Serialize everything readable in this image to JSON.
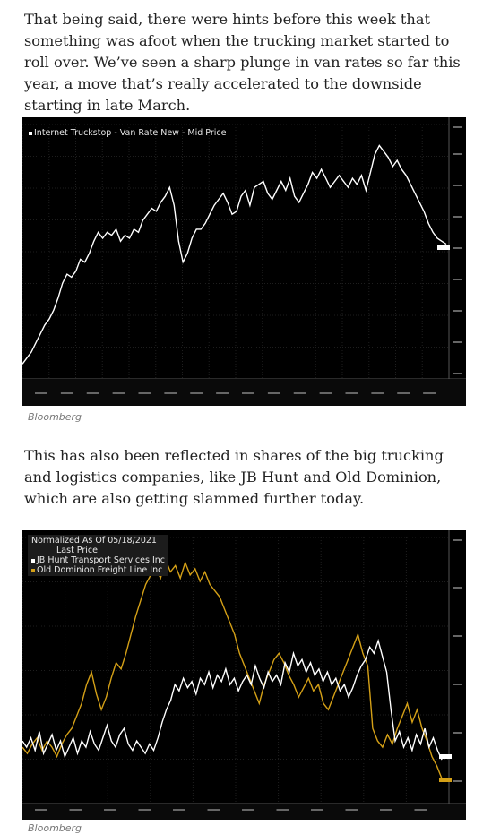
{
  "article": {
    "paragraph_1": "That being said, there were hints before this week that something was afoot when the trucking market started to roll over. We’ve seen a sharp plunge in van rates so far this year, a move that’s really accelerated to the downside starting in late March.",
    "caption_1": "Bloomberg",
    "paragraph_2": "This has also been reflected in shares of the big trucking and logistics companies, like JB Hunt and Old Dominion, which are also getting slammed further today.",
    "caption_2": "Bloomberg"
  },
  "colors": {
    "background": "#000000",
    "white_series": "#ffffff",
    "gold_series": "#d4a017"
  },
  "chart_data": [
    {
      "type": "line",
      "title": "Internet Truckstop - Van Rate New - Mid Price",
      "series": [
        {
          "name": "Internet Truckstop - Van Rate New - Mid Price",
          "color": "#ffffff",
          "values": [
            1.45,
            1.47,
            1.49,
            1.52,
            1.55,
            1.58,
            1.6,
            1.63,
            1.67,
            1.72,
            1.75,
            1.74,
            1.76,
            1.8,
            1.79,
            1.82,
            1.86,
            1.89,
            1.87,
            1.89,
            1.88,
            1.9,
            1.86,
            1.88,
            1.87,
            1.9,
            1.89,
            1.93,
            1.95,
            1.97,
            1.96,
            1.99,
            2.01,
            2.04,
            1.98,
            1.86,
            1.79,
            1.82,
            1.87,
            1.9,
            1.9,
            1.92,
            1.95,
            1.98,
            2.0,
            2.02,
            1.99,
            1.95,
            1.96,
            2.01,
            2.03,
            1.98,
            2.04,
            2.05,
            2.06,
            2.02,
            2.0,
            2.03,
            2.06,
            2.03,
            2.07,
            2.01,
            1.99,
            2.02,
            2.05,
            2.09,
            2.07,
            2.1,
            2.07,
            2.04,
            2.06,
            2.08,
            2.06,
            2.04,
            2.07,
            2.05,
            2.08,
            2.03,
            2.09,
            2.15,
            2.18,
            2.16,
            2.14,
            2.11,
            2.13,
            2.1,
            2.08,
            2.05,
            2.02,
            1.99,
            1.96,
            1.92,
            1.89,
            1.87,
            1.86,
            1.85
          ]
        }
      ]
    },
    {
      "type": "line",
      "title": "Normalized As Of 05/18/2021",
      "subtitle": "Last Price",
      "series": [
        {
          "name": "JB Hunt Transport Services Inc",
          "color": "#ffffff",
          "values": [
            100,
            98,
            101,
            97,
            103,
            96,
            99,
            102,
            97,
            100,
            95,
            98,
            101,
            96,
            100,
            98,
            103,
            99,
            97,
            101,
            105,
            100,
            98,
            102,
            104,
            99,
            97,
            100,
            98,
            96,
            99,
            97,
            101,
            106,
            110,
            113,
            118,
            116,
            120,
            117,
            119,
            115,
            120,
            118,
            122,
            117,
            121,
            119,
            123,
            118,
            120,
            116,
            119,
            121,
            118,
            124,
            120,
            117,
            122,
            119,
            121,
            118,
            125,
            122,
            128,
            124,
            126,
            122,
            125,
            121,
            123,
            119,
            122,
            118,
            120,
            116,
            118,
            114,
            117,
            121,
            124,
            126,
            130,
            128,
            132,
            127,
            122,
            110,
            100,
            103,
            98,
            101,
            97,
            102,
            99,
            104,
            98,
            101,
            97,
            94
          ]
        },
        {
          "name": "Old Dominion Freight Line Inc",
          "color": "#d4a017",
          "values": [
            98,
            96,
            99,
            101,
            97,
            100,
            98,
            95,
            99,
            102,
            104,
            108,
            112,
            118,
            122,
            115,
            110,
            114,
            120,
            125,
            123,
            128,
            134,
            140,
            145,
            150,
            153,
            155,
            152,
            158,
            154,
            156,
            152,
            157,
            153,
            155,
            151,
            154,
            150,
            148,
            146,
            142,
            138,
            134,
            128,
            124,
            120,
            116,
            112,
            118,
            122,
            126,
            128,
            125,
            121,
            118,
            114,
            117,
            120,
            116,
            118,
            112,
            110,
            114,
            118,
            122,
            126,
            130,
            134,
            128,
            124,
            104,
            100,
            98,
            102,
            99,
            104,
            108,
            112,
            106,
            110,
            104,
            100,
            95,
            92,
            88
          ]
        }
      ]
    }
  ]
}
